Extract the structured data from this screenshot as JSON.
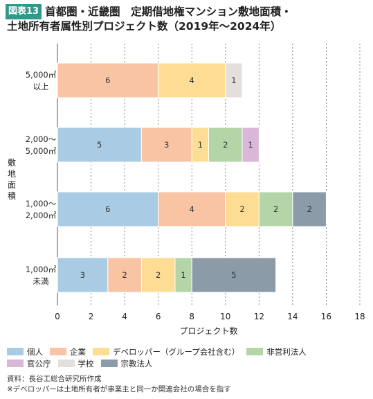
{
  "header": {
    "badge": "図表13",
    "title_line1": "首都圏・近畿圏　定期借地権マンション敷地面積・",
    "title_line2": "土地所有者属性別プロジェクト数（2019年～2024年）"
  },
  "colors": {
    "個人": "#a9cbe3",
    "企業": "#f8c4a4",
    "デベロッパー（グループ会社含む）": "#fddc93",
    "非営利法人": "#b4d5a8",
    "官公庁": "#d9b7d9",
    "学校": "#e2dfdd",
    "宗教法人": "#8b9ca8"
  },
  "chart_data": {
    "type": "bar",
    "orientation": "horizontal",
    "stacked": true,
    "xlabel": "プロジェクト数",
    "ylabel": "敷地面積",
    "xlim": [
      0,
      18
    ],
    "xticks": [
      "0",
      "2",
      "4",
      "6",
      "8",
      "10",
      "12",
      "14",
      "16",
      "18"
    ],
    "grid": "vertical-dashed",
    "legend_position": "bottom",
    "categories": [
      {
        "line1": "5,000㎡",
        "line2": "以上"
      },
      {
        "line1": "2,000～",
        "line2": "5,000㎡"
      },
      {
        "line1": "1,000～",
        "line2": "2,000㎡"
      },
      {
        "line1": "1,000㎡",
        "line2": "未満"
      }
    ],
    "series": [
      {
        "name": "個人",
        "values": [
          0,
          5,
          6,
          3
        ]
      },
      {
        "name": "企業",
        "values": [
          6,
          3,
          4,
          2
        ]
      },
      {
        "name": "デベロッパー（グループ会社含む）",
        "values": [
          4,
          1,
          2,
          2
        ]
      },
      {
        "name": "非営利法人",
        "values": [
          0,
          2,
          2,
          1
        ]
      },
      {
        "name": "官公庁",
        "values": [
          0,
          1,
          0,
          0
        ]
      },
      {
        "name": "学校",
        "values": [
          1,
          0,
          0,
          0
        ]
      },
      {
        "name": "宗教法人",
        "values": [
          0,
          0,
          2,
          5
        ]
      }
    ]
  },
  "legend": {
    "row1": [
      "個人",
      "企業",
      "デベロッパー（グループ会社含む）",
      "非営利法人"
    ],
    "row2": [
      "官公庁",
      "学校",
      "宗教法人"
    ]
  },
  "notes": {
    "source": "資料：長谷工総合研究所作成",
    "note": "※デベロッパーは土地所有者が事業主と同一か関連会社の場合を指す"
  }
}
